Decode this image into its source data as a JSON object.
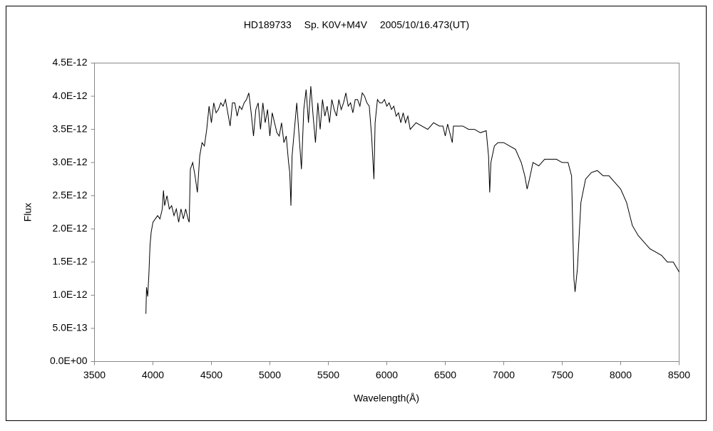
{
  "chart_data": {
    "type": "line",
    "title": "HD189733　 Sp. K0V+M4V　 2005/10/16.473(UT)",
    "x_label": "Wavelength(Å)",
    "y_label": "Flux",
    "color": "#000000",
    "grid": false,
    "xlim": [
      3500,
      8500
    ],
    "xticks": [
      3500,
      4000,
      4500,
      5000,
      5500,
      6000,
      6500,
      7000,
      7500,
      8000,
      8500
    ],
    "ylim": [
      0,
      4.5e-12
    ],
    "yticks": [
      {
        "value": 0,
        "label": "0.0E+00"
      },
      {
        "value": 5e-13,
        "label": "5.0E-13"
      },
      {
        "value": 1e-12,
        "label": "1.0E-12"
      },
      {
        "value": 1.5e-12,
        "label": "1.5E-12"
      },
      {
        "value": 2e-12,
        "label": "2.0E-12"
      },
      {
        "value": 2.5e-12,
        "label": "2.5E-12"
      },
      {
        "value": 3e-12,
        "label": "3.0E-12"
      },
      {
        "value": 3.5e-12,
        "label": "3.5E-12"
      },
      {
        "value": 4e-12,
        "label": "4.0E-12"
      },
      {
        "value": 4.5e-12,
        "label": "4.5E-12"
      }
    ],
    "x": [
      3940,
      3945,
      3955,
      3965,
      3975,
      3985,
      4000,
      4020,
      4040,
      4060,
      4080,
      4090,
      4100,
      4120,
      4140,
      4160,
      4180,
      4200,
      4220,
      4240,
      4260,
      4280,
      4300,
      4310,
      4320,
      4340,
      4360,
      4380,
      4400,
      4420,
      4440,
      4460,
      4480,
      4500,
      4520,
      4540,
      4560,
      4580,
      4600,
      4620,
      4640,
      4660,
      4680,
      4700,
      4720,
      4740,
      4760,
      4780,
      4800,
      4820,
      4840,
      4860,
      4880,
      4900,
      4920,
      4940,
      4960,
      4980,
      5000,
      5020,
      5040,
      5060,
      5080,
      5100,
      5120,
      5140,
      5160,
      5170,
      5180,
      5190,
      5210,
      5230,
      5250,
      5270,
      5290,
      5310,
      5330,
      5350,
      5370,
      5390,
      5410,
      5430,
      5450,
      5470,
      5490,
      5510,
      5530,
      5550,
      5570,
      5590,
      5610,
      5630,
      5650,
      5670,
      5690,
      5710,
      5730,
      5750,
      5770,
      5790,
      5810,
      5830,
      5850,
      5870,
      5890,
      5900,
      5920,
      5940,
      5960,
      5980,
      6000,
      6020,
      6040,
      6060,
      6080,
      6100,
      6120,
      6140,
      6160,
      6180,
      6200,
      6250,
      6300,
      6350,
      6400,
      6450,
      6480,
      6500,
      6520,
      6560,
      6570,
      6600,
      6650,
      6700,
      6750,
      6800,
      6850,
      6870,
      6880,
      6890,
      6920,
      6950,
      7000,
      7050,
      7100,
      7150,
      7180,
      7200,
      7220,
      7250,
      7300,
      7350,
      7400,
      7450,
      7500,
      7550,
      7580,
      7600,
      7610,
      7630,
      7660,
      7700,
      7750,
      7800,
      7850,
      7900,
      7950,
      8000,
      8050,
      8100,
      8150,
      8200,
      8250,
      8300,
      8350,
      8400,
      8450,
      8500
    ],
    "values": [
      7.2e-13,
      1.12e-12,
      9.8e-13,
      1.3e-12,
      1.75e-12,
      1.95e-12,
      2.1e-12,
      2.15e-12,
      2.2e-12,
      2.15e-12,
      2.3e-12,
      2.58e-12,
      2.35e-12,
      2.5e-12,
      2.3e-12,
      2.35e-12,
      2.2e-12,
      2.3e-12,
      2.1e-12,
      2.3e-12,
      2.15e-12,
      2.3e-12,
      2.15e-12,
      2.1e-12,
      2.9e-12,
      3e-12,
      2.8e-12,
      2.55e-12,
      3.1e-12,
      3.3e-12,
      3.25e-12,
      3.5e-12,
      3.85e-12,
      3.6e-12,
      3.9e-12,
      3.75e-12,
      3.8e-12,
      3.9e-12,
      3.85e-12,
      3.95e-12,
      3.75e-12,
      3.55e-12,
      3.9e-12,
      3.9e-12,
      3.7e-12,
      3.85e-12,
      3.8e-12,
      3.9e-12,
      3.95e-12,
      4.05e-12,
      3.75e-12,
      3.4e-12,
      3.8e-12,
      3.9e-12,
      3.5e-12,
      3.9e-12,
      3.6e-12,
      3.8e-12,
      3.4e-12,
      3.75e-12,
      3.6e-12,
      3.45e-12,
      3.4e-12,
      3.6e-12,
      3.3e-12,
      3.4e-12,
      3e-12,
      2.85e-12,
      2.35e-12,
      3.1e-12,
      3.5e-12,
      3.9e-12,
      3.4e-12,
      2.9e-12,
      3.8e-12,
      4.1e-12,
      3.6e-12,
      4.15e-12,
      3.7e-12,
      3.3e-12,
      3.9e-12,
      3.5e-12,
      3.95e-12,
      3.7e-12,
      3.85e-12,
      3.6e-12,
      3.95e-12,
      3.8e-12,
      3.7e-12,
      3.95e-12,
      3.8e-12,
      3.9e-12,
      4.05e-12,
      3.85e-12,
      3.9e-12,
      3.75e-12,
      3.95e-12,
      3.95e-12,
      3.85e-12,
      4.05e-12,
      4e-12,
      3.9e-12,
      3.85e-12,
      3.4e-12,
      2.75e-12,
      3.6e-12,
      3.95e-12,
      3.9e-12,
      3.9e-12,
      3.95e-12,
      3.85e-12,
      3.9e-12,
      3.8e-12,
      3.85e-12,
      3.7e-12,
      3.75e-12,
      3.6e-12,
      3.75e-12,
      3.6e-12,
      3.7e-12,
      3.5e-12,
      3.6e-12,
      3.55e-12,
      3.5e-12,
      3.6e-12,
      3.55e-12,
      3.55e-12,
      3.4e-12,
      3.58e-12,
      3.3e-12,
      3.55e-12,
      3.55e-12,
      3.55e-12,
      3.5e-12,
      3.5e-12,
      3.45e-12,
      3.48e-12,
      3.1e-12,
      2.55e-12,
      3e-12,
      3.25e-12,
      3.3e-12,
      3.3e-12,
      3.25e-12,
      3.2e-12,
      3e-12,
      2.8e-12,
      2.6e-12,
      2.75e-12,
      3e-12,
      2.95e-12,
      3.05e-12,
      3.05e-12,
      3.05e-12,
      3e-12,
      3e-12,
      2.8e-12,
      1.25e-12,
      1.05e-12,
      1.4e-12,
      2.4e-12,
      2.75e-12,
      2.85e-12,
      2.88e-12,
      2.8e-12,
      2.8e-12,
      2.7e-12,
      2.6e-12,
      2.4e-12,
      2.05e-12,
      1.9e-12,
      1.8e-12,
      1.7e-12,
      1.65e-12,
      1.6e-12,
      1.5e-12,
      1.5e-12,
      1.35e-12
    ]
  }
}
